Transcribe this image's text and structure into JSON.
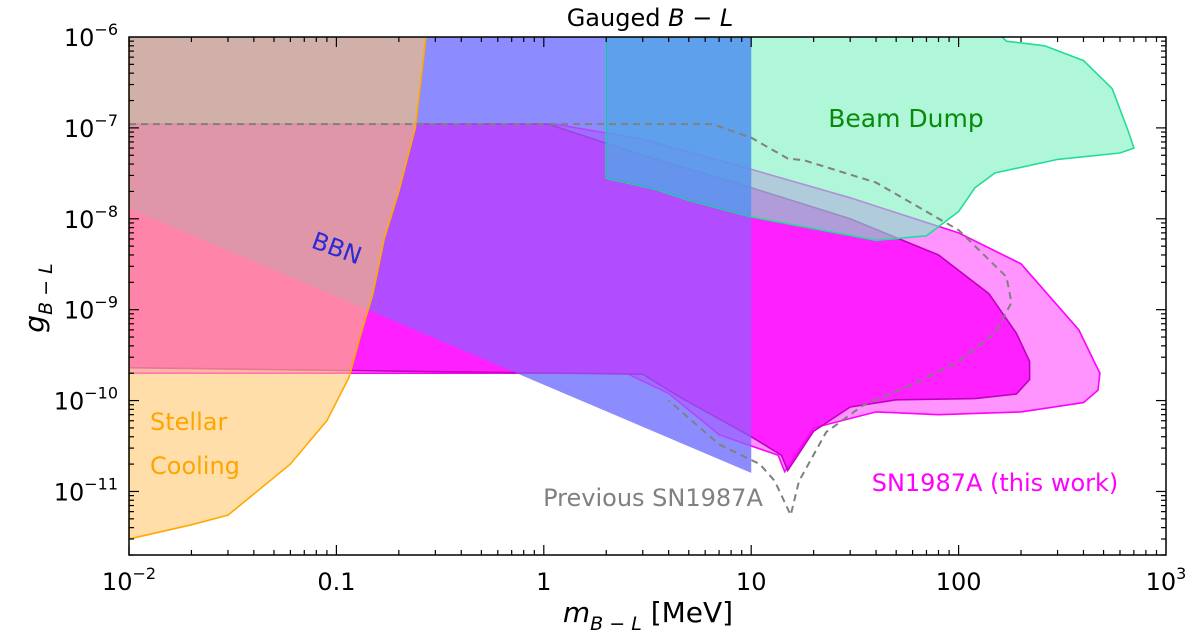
{
  "chart_data": {
    "type": "area",
    "title_main": "Gauged ",
    "title_italic": "B − L",
    "xlabel_sym": "m",
    "xlabel_sub": "B − L",
    "xlabel_unit": " [MeV]",
    "ylabel_sym": "g",
    "ylabel_sub": "B − L",
    "xscale": "log",
    "yscale": "log",
    "xlim": [
      0.01,
      1000
    ],
    "ylim": [
      2e-12,
      1e-06
    ],
    "x_ticks": [
      {
        "value": 0.01,
        "base": "10",
        "exp": "−2"
      },
      {
        "value": 0.1,
        "base": "0.1",
        "exp": ""
      },
      {
        "value": 1,
        "base": "1",
        "exp": ""
      },
      {
        "value": 10,
        "base": "10",
        "exp": ""
      },
      {
        "value": 100,
        "base": "100",
        "exp": ""
      },
      {
        "value": 1000,
        "base": "10",
        "exp": "3"
      }
    ],
    "y_ticks": [
      {
        "value": 1e-11,
        "base": "10",
        "exp": "−11"
      },
      {
        "value": 1e-10,
        "base": "10",
        "exp": "−10"
      },
      {
        "value": 1e-09,
        "base": "10",
        "exp": "−9"
      },
      {
        "value": 1e-08,
        "base": "10",
        "exp": "−8"
      },
      {
        "value": 1e-07,
        "base": "10",
        "exp": "−7"
      },
      {
        "value": 1e-06,
        "base": "10",
        "exp": "−6"
      }
    ],
    "regions": [
      {
        "key": "bbn",
        "fill": "#7b7bff",
        "fill_opacity": 0.72,
        "stroke": "none",
        "points": [
          [
            0.01,
            1.2e-06
          ],
          [
            10,
            1.2e-06
          ],
          [
            10,
            1.6e-11
          ],
          [
            0.01,
            1.3e-08
          ]
        ]
      },
      {
        "key": "sn_this",
        "fill": "#ff00ff",
        "fill_opacity": 0.42,
        "stroke": "#ff00ff",
        "points": [
          [
            0.01,
            1.1e-07
          ],
          [
            1.12,
            1.1e-07
          ],
          [
            3,
            7.5e-08
          ],
          [
            10,
            3.5e-08
          ],
          [
            30,
            1.7e-08
          ],
          [
            100,
            7e-09
          ],
          [
            200,
            3.2e-09
          ],
          [
            380,
            6e-10
          ],
          [
            450,
            2.7e-10
          ],
          [
            480,
            2e-10
          ],
          [
            470,
            1.3e-10
          ],
          [
            400,
            9.5e-11
          ],
          [
            200,
            7.5e-11
          ],
          [
            80,
            7e-11
          ],
          [
            40,
            7.5e-11
          ],
          [
            20,
            5e-11
          ],
          [
            14.5,
            1.65e-11
          ],
          [
            13.5,
            2.5e-11
          ],
          [
            7,
            4.2e-11
          ],
          [
            4,
            1.2e-10
          ],
          [
            2.5,
            2e-10
          ],
          [
            0.01,
            2e-10
          ]
        ]
      },
      {
        "key": "sn_inner",
        "fill": "#ff00ff",
        "fill_opacity": 0.78,
        "stroke": "#c000c0",
        "points": [
          [
            0.01,
            1.1e-07
          ],
          [
            1.05,
            1.1e-07
          ],
          [
            3,
            5e-08
          ],
          [
            10,
            2.2e-08
          ],
          [
            30,
            1e-08
          ],
          [
            80,
            4e-09
          ],
          [
            140,
            1.5e-09
          ],
          [
            190,
            5.5e-10
          ],
          [
            220,
            2.7e-10
          ],
          [
            220,
            1.7e-10
          ],
          [
            190,
            1.18e-10
          ],
          [
            120,
            1.05e-10
          ],
          [
            50,
            1.02e-10
          ],
          [
            30,
            8.5e-11
          ],
          [
            20,
            4.6e-11
          ],
          [
            15,
            1.7e-11
          ],
          [
            14,
            2.5e-11
          ],
          [
            10,
            4e-11
          ],
          [
            4.5,
            1.1e-10
          ],
          [
            3,
            1.95e-10
          ],
          [
            0.01,
            2.3e-10
          ]
        ]
      },
      {
        "key": "bbn_overlay",
        "fill": "#7b7bff",
        "fill_opacity": 0.55,
        "stroke": "none",
        "points": [
          [
            0.01,
            1.2e-06
          ],
          [
            10,
            1.2e-06
          ],
          [
            10,
            1.6e-11
          ],
          [
            0.01,
            1.3e-08
          ]
        ]
      },
      {
        "key": "beam_dump",
        "fill": "#7cf0c0",
        "fill_opacity": 0.6,
        "stroke": "#22dd99",
        "points": [
          [
            2,
            2.8e-08
          ],
          [
            2,
            1.2e-06
          ],
          [
            150,
            1.2e-06
          ],
          [
            170,
            9e-07
          ],
          [
            260,
            8e-07
          ],
          [
            400,
            5.5e-07
          ],
          [
            550,
            2.7e-07
          ],
          [
            660,
            9e-08
          ],
          [
            700,
            6e-08
          ],
          [
            600,
            5.3e-08
          ],
          [
            300,
            4.5e-08
          ],
          [
            150,
            3.2e-08
          ],
          [
            120,
            2.2e-08
          ],
          [
            100,
            1.2e-08
          ],
          [
            70,
            6.5e-09
          ],
          [
            40,
            5.8e-09
          ],
          [
            10,
            1.05e-08
          ],
          [
            5,
            1.6e-08
          ],
          [
            3.5,
            2.1e-08
          ]
        ]
      },
      {
        "key": "overlap",
        "fill": "#3c78ff",
        "fill_opacity": 0.5,
        "stroke": "none",
        "points": [
          [
            2,
            1.2e-06
          ],
          [
            10,
            1.2e-06
          ],
          [
            10,
            1.05e-08
          ],
          [
            5,
            1.6e-08
          ],
          [
            3.5,
            2.1e-08
          ],
          [
            2,
            2.8e-08
          ]
        ]
      },
      {
        "key": "stellar",
        "fill": "#ffc870",
        "fill_opacity": 0.6,
        "stroke": "#ffaa00",
        "points": [
          [
            0.01,
            1.5e-06
          ],
          [
            0.29,
            1.5e-06
          ],
          [
            0.27,
            1e-06
          ],
          [
            0.24,
            1e-07
          ],
          [
            0.2,
            2e-08
          ],
          [
            0.17,
            6e-09
          ],
          [
            0.15,
            1.5e-09
          ],
          [
            0.13,
            5e-10
          ],
          [
            0.115,
            1.8e-10
          ],
          [
            0.09,
            6e-11
          ],
          [
            0.06,
            2e-11
          ],
          [
            0.03,
            5.5e-12
          ],
          [
            0.02,
            4.3e-12
          ],
          [
            0.01,
            3e-12
          ]
        ]
      }
    ],
    "previous_sn": [
      [
        0.01,
        1.1e-07
      ],
      [
        6.5,
        1.1e-07
      ],
      [
        10,
        7.8e-08
      ],
      [
        15,
        4.6e-08
      ],
      [
        18,
        4.4e-08
      ],
      [
        40,
        2.5e-08
      ],
      [
        100,
        7.5e-09
      ],
      [
        170,
        2.3e-09
      ],
      [
        180,
        1.2e-09
      ],
      [
        150,
        5.5e-10
      ],
      [
        100,
        2.7e-10
      ],
      [
        60,
        1.5e-10
      ],
      [
        35,
        9e-11
      ],
      [
        23,
        4.5e-11
      ],
      [
        17,
        1.3e-11
      ],
      [
        15.5,
        5.5e-12
      ],
      [
        13,
        1.3e-11
      ],
      [
        11,
        2e-11
      ],
      [
        7,
        3.3e-11
      ],
      [
        4,
        1e-10
      ]
    ],
    "labels": {
      "beam_dump": "Beam Dump",
      "bbn": "BBN",
      "stellar_line1": "Stellar",
      "stellar_line2": "Cooling",
      "previous": "Previous SN1987A",
      "sn_this": "SN1987A (this work)"
    },
    "colors": {
      "beam_dump_text": "#0a8a0a",
      "bbn_text": "#2a2ad8",
      "stellar_text": "#ffa500",
      "previous_text": "#808080",
      "sn_text": "#ff00ff"
    }
  }
}
